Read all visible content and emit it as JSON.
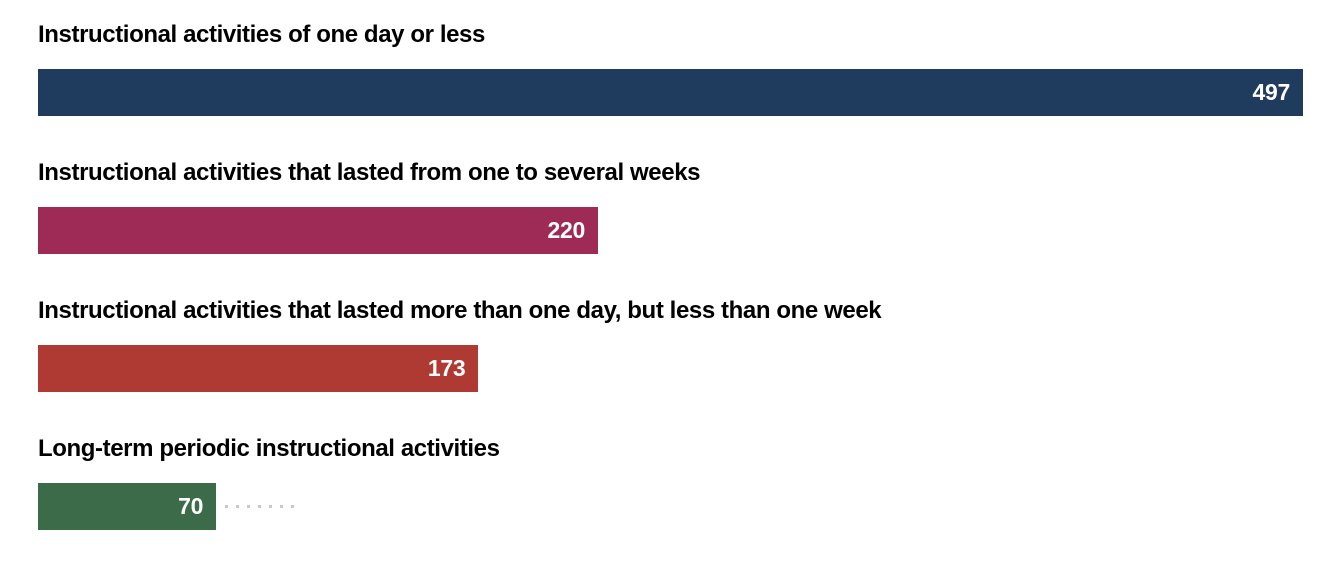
{
  "page": {
    "background": "#ffffff"
  },
  "chart_data": {
    "type": "bar",
    "orientation": "horizontal",
    "title": "",
    "xlabel": "",
    "ylabel": "",
    "categories": [
      "Instructional activities of one day or less",
      "Instructional activities that lasted from one to several weeks",
      "Instructional activities that lasted more than one day, but less than one week",
      "Long-term periodic instructional activities"
    ],
    "values": [
      497,
      220,
      173,
      70
    ],
    "colors": [
      "#1f3b5e",
      "#9e2a56",
      "#ae3a33",
      "#3c6b4a"
    ],
    "xlim": [
      0,
      497
    ],
    "grid": false,
    "legend": false,
    "value_labels": {
      "position": "inside-end",
      "color": "#ffffff"
    },
    "category_label_color": "#000000",
    "dotted_leader": {
      "row_index": 3,
      "color": "#c9c9c9"
    }
  }
}
